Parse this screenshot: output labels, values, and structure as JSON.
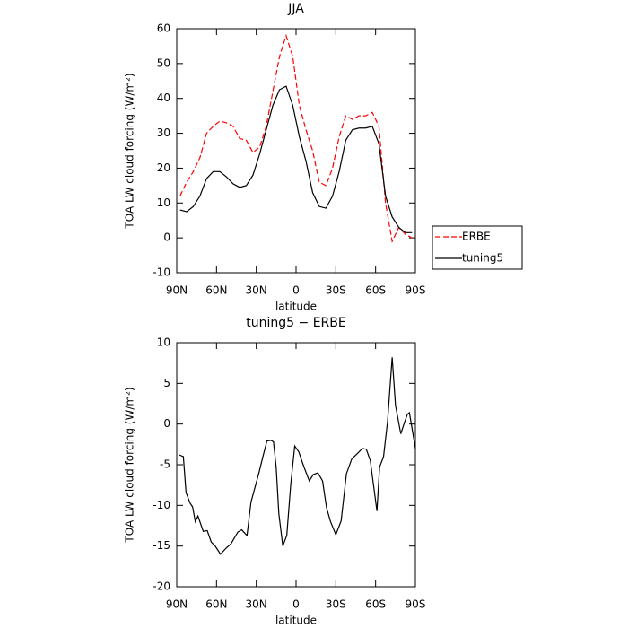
{
  "chart_data": [
    {
      "type": "line",
      "title": "JJA",
      "xlabel": "latitude",
      "ylabel": "TOA LW cloud forcing (W/m²)",
      "x": [
        87.5,
        82.5,
        77.5,
        72.5,
        67.5,
        62.5,
        57.5,
        52.5,
        47.5,
        42.5,
        37.5,
        32.5,
        27.5,
        22.5,
        17.5,
        12.5,
        7.5,
        2.5,
        -2.5,
        -7.5,
        -12.5,
        -17.5,
        -22.5,
        -27.5,
        -32.5,
        -37.5,
        -42.5,
        -47.5,
        -52.5,
        -57.5,
        -62.5,
        -67.5,
        -72.5,
        -77.5,
        -82.5,
        -87.5
      ],
      "series": [
        {
          "name": "ERBE",
          "color": "#ff0000",
          "linestyle": "dashed",
          "values": [
            12,
            16,
            19,
            23,
            30,
            32,
            33.5,
            33,
            32,
            28.5,
            28,
            24.5,
            26,
            32,
            42,
            52,
            58,
            52,
            38,
            31,
            25,
            16,
            15,
            20,
            29,
            35,
            34,
            35,
            35,
            36,
            32,
            10,
            -1,
            3,
            1,
            0
          ]
        },
        {
          "name": "tuning5",
          "color": "#000000",
          "linestyle": "solid",
          "values": [
            8,
            7.5,
            9,
            12,
            17,
            19,
            19,
            17.5,
            15.5,
            14.5,
            15,
            18,
            24,
            31,
            38,
            42.5,
            43.5,
            38,
            29,
            22,
            13,
            9,
            8.5,
            12,
            19,
            28,
            31,
            31.5,
            31.5,
            32,
            27,
            12,
            6,
            3,
            1.5,
            1.5
          ]
        }
      ],
      "xlim": [
        90,
        -90
      ],
      "ylim": [
        -10,
        60
      ],
      "xticks": [
        {
          "value": 90,
          "label": "90N"
        },
        {
          "value": 60,
          "label": "60N"
        },
        {
          "value": 30,
          "label": "30N"
        },
        0,
        {
          "value": -30,
          "label": "30S"
        },
        {
          "value": -60,
          "label": "60S"
        },
        {
          "value": -90,
          "label": "90S"
        }
      ],
      "yticks": [
        -10,
        0,
        10,
        20,
        30,
        40,
        50,
        60
      ],
      "legend": "right"
    },
    {
      "type": "line",
      "title": "tuning5 − ERBE",
      "xlabel": "latitude",
      "ylabel": "TOA LW cloud forcing (W/m²)",
      "x": [
        88,
        85,
        83,
        80,
        78,
        76,
        74,
        70,
        67,
        64,
        61,
        57,
        53,
        49,
        44,
        41,
        37,
        34,
        28,
        25,
        22,
        19,
        17,
        15,
        13,
        10,
        7,
        4,
        1,
        -2,
        -6,
        -10,
        -13,
        -16.5,
        -20,
        -23,
        -26,
        -30,
        -34,
        -38,
        -42,
        -47,
        -50,
        -53,
        -56,
        -61,
        -63,
        -66,
        -69,
        -72.5,
        -75,
        -79,
        -82,
        -84,
        -85.5,
        -90
      ],
      "series": [
        {
          "color": "#000000",
          "linestyle": "solid",
          "values": [
            -3.8,
            -4,
            -8.4,
            -9.7,
            -10.2,
            -12,
            -11.3,
            -13.2,
            -13.1,
            -14.5,
            -15,
            -16,
            -15.3,
            -14.7,
            -13.3,
            -13,
            -13.7,
            -9.6,
            -6,
            -4,
            -2.1,
            -2,
            -2.2,
            -5.3,
            -11,
            -15,
            -13.7,
            -7.4,
            -2.7,
            -3.4,
            -5.3,
            -7,
            -6.2,
            -6,
            -7,
            -10.3,
            -12,
            -13.6,
            -11.9,
            -6.1,
            -4.3,
            -3.5,
            -3,
            -3.1,
            -4.5,
            -10.7,
            -5.3,
            -4,
            0.3,
            8.2,
            2.3,
            -1.2,
            0.3,
            1.2,
            1.4,
            -3
          ]
        }
      ],
      "xlim": [
        90,
        -90
      ],
      "ylim": [
        -20,
        10
      ],
      "xticks": [
        {
          "value": 90,
          "label": "90N"
        },
        {
          "value": 60,
          "label": "60N"
        },
        {
          "value": 30,
          "label": "30N"
        },
        0,
        {
          "value": -30,
          "label": "30S"
        },
        {
          "value": -60,
          "label": "60S"
        },
        {
          "value": -90,
          "label": "90S"
        }
      ],
      "yticks": [
        -20,
        -15,
        -10,
        -5,
        0,
        5,
        10
      ]
    }
  ]
}
